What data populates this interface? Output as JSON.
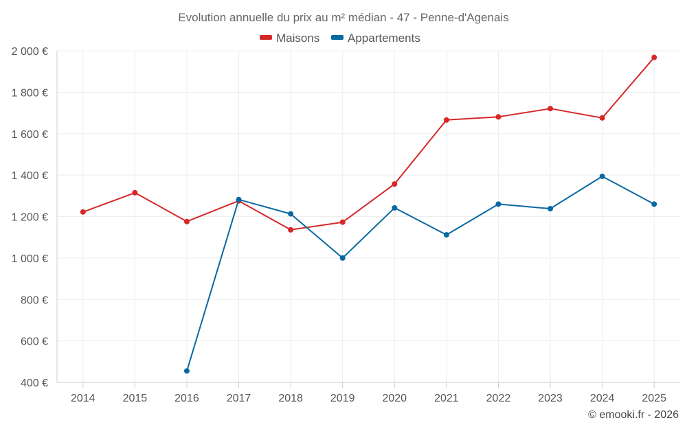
{
  "chart_data": {
    "type": "line",
    "title": "Evolution annuelle du prix au m² médian - 47 - Penne-d'Agenais",
    "credit": "© emooki.fr - 2026",
    "categories": [
      "2014",
      "2015",
      "2016",
      "2017",
      "2018",
      "2019",
      "2020",
      "2021",
      "2022",
      "2023",
      "2024",
      "2025"
    ],
    "ylim": [
      400,
      2000
    ],
    "yticks": [
      400,
      600,
      800,
      1000,
      1200,
      1400,
      1600,
      1800,
      2000
    ],
    "ytick_labels": [
      "400 €",
      "600 €",
      "800 €",
      "1 000 €",
      "1 200 €",
      "1 400 €",
      "1 600 €",
      "1 800 €",
      "2 000 €"
    ],
    "legend_position": "top-center",
    "grid": true,
    "series": [
      {
        "name": "Maisons",
        "color": "#d62728",
        "values": [
          1222,
          1315,
          1176,
          1276,
          1136,
          1173,
          1357,
          1666,
          1681,
          1721,
          1676,
          1968
        ]
      },
      {
        "name": "Appartements",
        "color": "#0868a0",
        "values": [
          null,
          null,
          455,
          1282,
          1213,
          1000,
          1242,
          1112,
          1260,
          1238,
          1394,
          1260
        ]
      }
    ]
  }
}
